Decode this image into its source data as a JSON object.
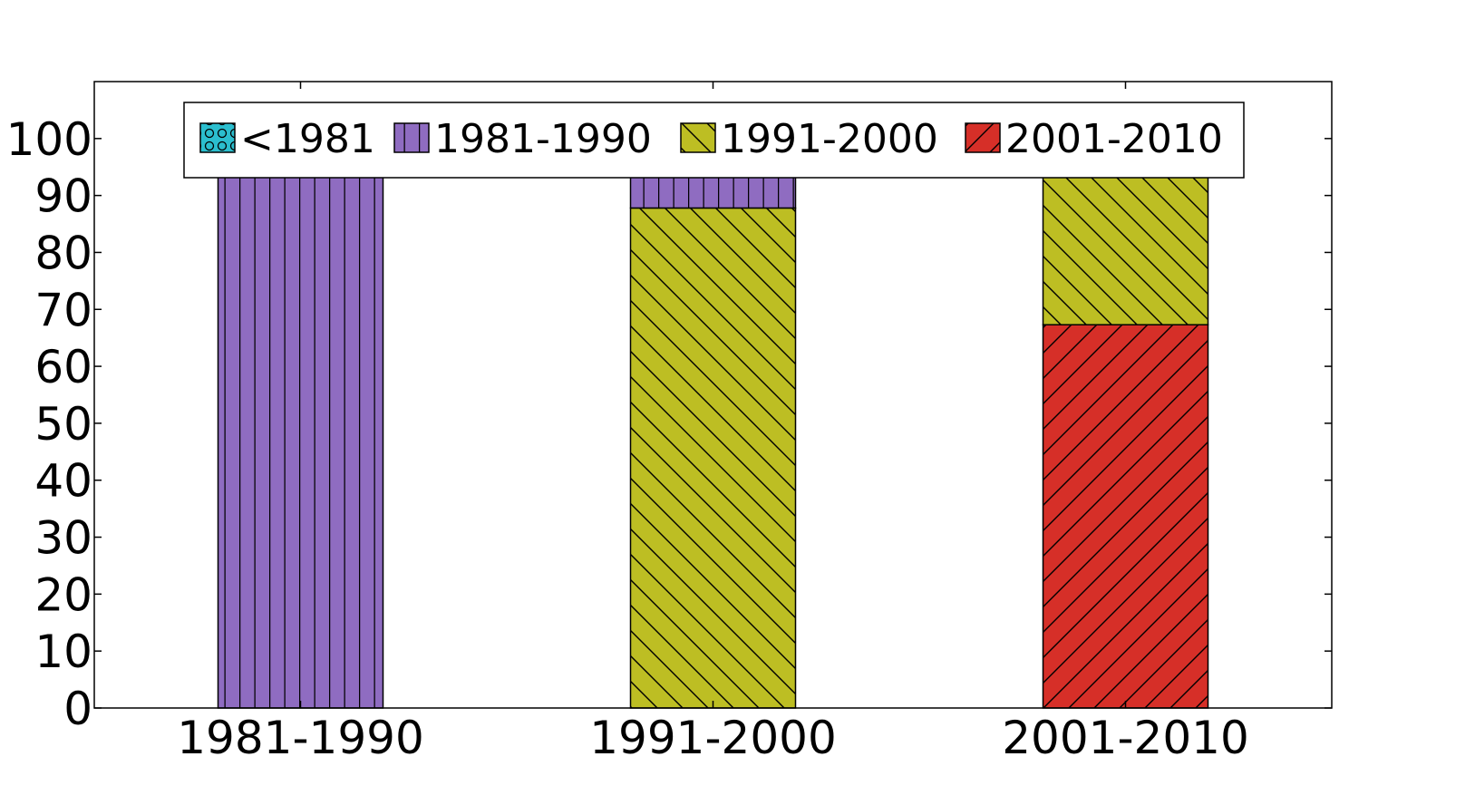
{
  "chart_data": {
    "type": "bar",
    "stacked": true,
    "title": "",
    "xlabel": "",
    "ylabel": "",
    "categories": [
      "1981-1990",
      "1991-2000",
      "2001-2010"
    ],
    "ylim": [
      0,
      110
    ],
    "yticks": [
      0,
      10,
      20,
      30,
      40,
      50,
      60,
      70,
      80,
      90,
      100
    ],
    "legend_position": "top-center",
    "grid": false,
    "series": [
      {
        "name": "<1981",
        "color": "#2bbece",
        "hatch": "circles",
        "values": [
          0,
          0,
          0
        ]
      },
      {
        "name": "2001-2010",
        "color": "#d62f28",
        "hatch": "forward-diagonal",
        "values": [
          0,
          0,
          67.3
        ]
      },
      {
        "name": "1991-2000",
        "color": "#bdbe23",
        "hatch": "back-diagonal",
        "values": [
          0,
          87.8,
          31.8
        ]
      },
      {
        "name": "1981-1990",
        "color": "#8f6cc1",
        "hatch": "vertical",
        "values": [
          100,
          12.2,
          0.9
        ]
      }
    ],
    "legend_order": [
      "<1981",
      "1981-1990",
      "1991-2000",
      "2001-2010"
    ]
  }
}
